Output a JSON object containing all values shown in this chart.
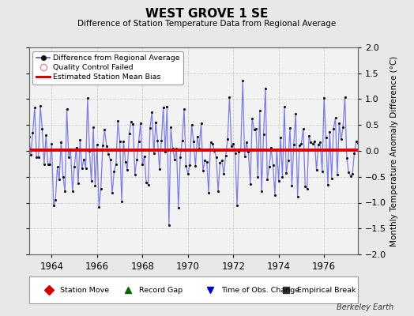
{
  "title": "WEST GROVE 1 SE",
  "subtitle": "Difference of Station Temperature Data from Regional Average",
  "ylabel": "Monthly Temperature Anomaly Difference (°C)",
  "xlabel_years": [
    1964,
    1966,
    1968,
    1970,
    1972,
    1974,
    1976
  ],
  "ylim": [
    -2,
    2
  ],
  "yticks": [
    -2,
    -1.5,
    -1,
    -0.5,
    0,
    0.5,
    1,
    1.5,
    2
  ],
  "start_year": 1963.0,
  "end_year": 1977.5,
  "bias_line": 0.02,
  "bias_color": "#dd0000",
  "line_color": "#5555dd",
  "line_alpha": 0.75,
  "dot_color": "#111111",
  "background_color": "#e8e8e8",
  "plot_bg_color": "#f2f2f2",
  "watermark": "Berkeley Earth",
  "legend1_label": "Difference from Regional Average",
  "legend2_label": "Quality Control Failed",
  "legend3_label": "Estimated Station Mean Bias",
  "footer_labels": [
    "Station Move",
    "Record Gap",
    "Time of Obs. Change",
    "Empirical Break"
  ],
  "footer_colors": [
    "#cc0000",
    "#006600",
    "#0000cc",
    "#333333"
  ],
  "footer_markers": [
    "D",
    "^",
    "v",
    "s"
  ],
  "seed": 42
}
